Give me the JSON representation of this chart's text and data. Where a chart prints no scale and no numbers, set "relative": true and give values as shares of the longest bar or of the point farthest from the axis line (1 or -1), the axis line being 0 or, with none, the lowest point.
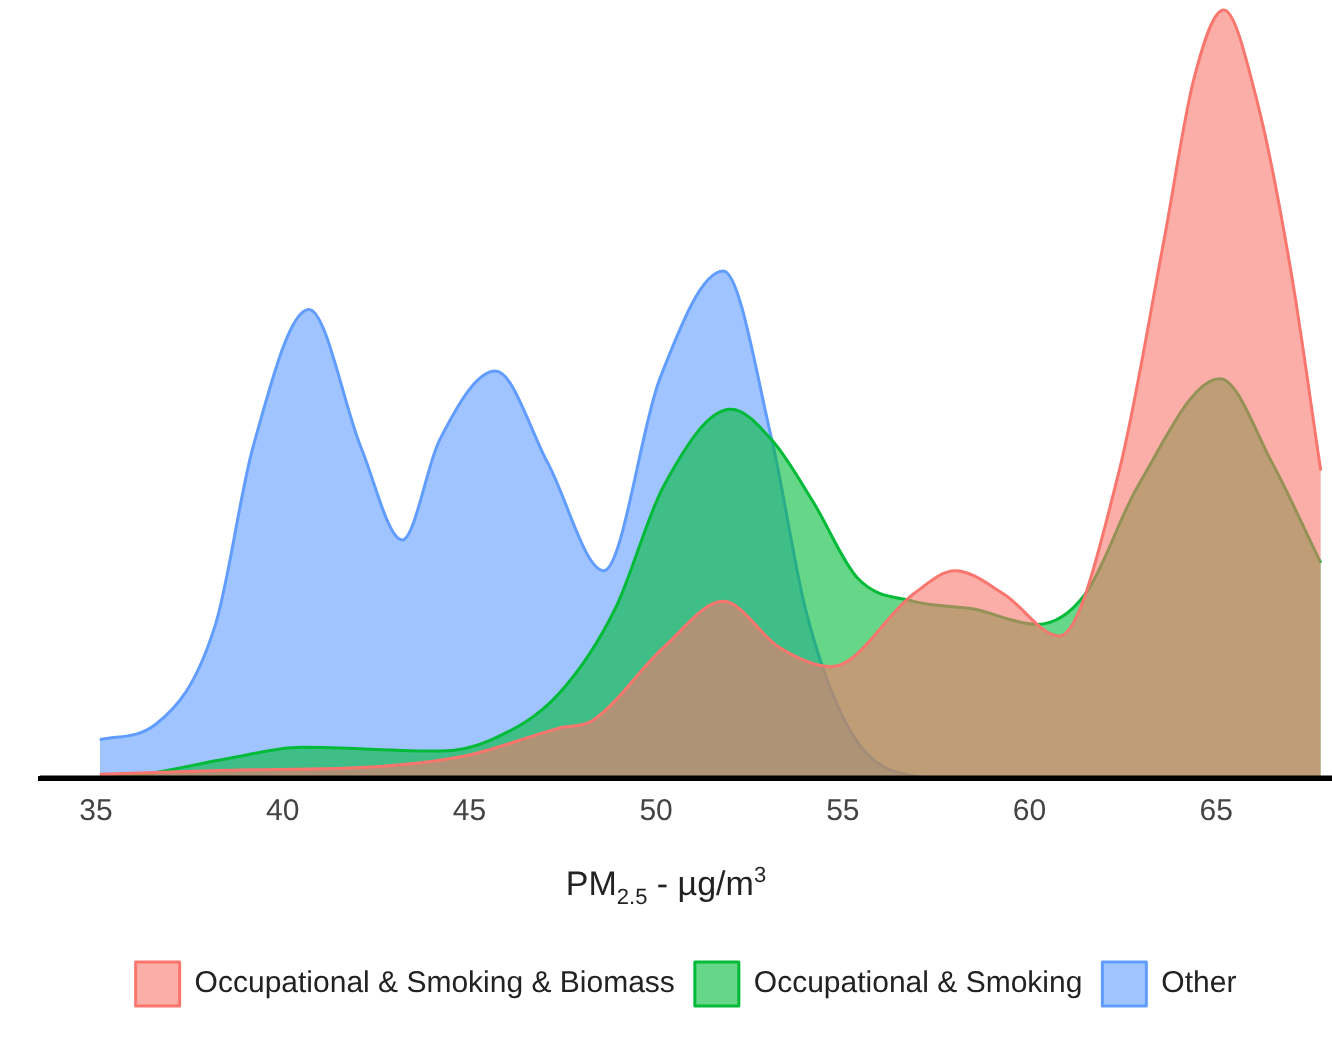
{
  "chart_data": {
    "type": "area",
    "relative": true,
    "xlabel": "PM$_{2.5}$ - µg/m$^{3}$",
    "xlim": [
      33.5,
      68.1
    ],
    "xticks": [
      35,
      40,
      45,
      50,
      55,
      60,
      65
    ],
    "grid": false,
    "legend": "bottom",
    "series": [
      {
        "name": "Occupational & Smoking & Biomass",
        "color": "#f8766d",
        "x": [
          35.1,
          38.5,
          42.6,
          45.0,
          47.4,
          48.3,
          50.2,
          51.8,
          53.3,
          54.7,
          56.9,
          58.0,
          59.3,
          60.8,
          62.4,
          63.6,
          64.4,
          65.2,
          66.1,
          67.0,
          67.8
        ],
        "values": [
          0.005,
          0.01,
          0.015,
          0.03,
          0.065,
          0.075,
          0.17,
          0.23,
          0.17,
          0.145,
          0.24,
          0.27,
          0.24,
          0.185,
          0.4,
          0.7,
          0.91,
          1,
          0.88,
          0.66,
          0.4
        ]
      },
      {
        "name": "Occupational & Smoking",
        "color": "#00ba38",
        "x": [
          35.1,
          36.3,
          38.5,
          40.5,
          44.2,
          45.6,
          47.4,
          48.9,
          50.2,
          52.0,
          53.1,
          54.2,
          55.4,
          56.9,
          58.5,
          60.2,
          61.5,
          62.9,
          65.1,
          66.5,
          67.8
        ],
        "values": [
          0.0,
          0.005,
          0.025,
          0.04,
          0.035,
          0.05,
          0.11,
          0.22,
          0.38,
          0.48,
          0.44,
          0.36,
          0.26,
          0.23,
          0.22,
          0.2,
          0.24,
          0.38,
          0.52,
          0.41,
          0.28
        ]
      },
      {
        "name": "Other",
        "color": "#619cff",
        "x": [
          35.1,
          36.6,
          38.2,
          39.2,
          40.7,
          42.1,
          43.2,
          44.2,
          45.7,
          47.1,
          48.6,
          50.1,
          51.8,
          53.1,
          54.0,
          55.1,
          56.3,
          58.0,
          67.8
        ],
        "values": [
          0.05,
          0.07,
          0.2,
          0.43,
          0.61,
          0.43,
          0.31,
          0.44,
          0.53,
          0.41,
          0.27,
          0.52,
          0.66,
          0.44,
          0.22,
          0.07,
          0.01,
          0.0,
          0.0
        ]
      }
    ]
  }
}
